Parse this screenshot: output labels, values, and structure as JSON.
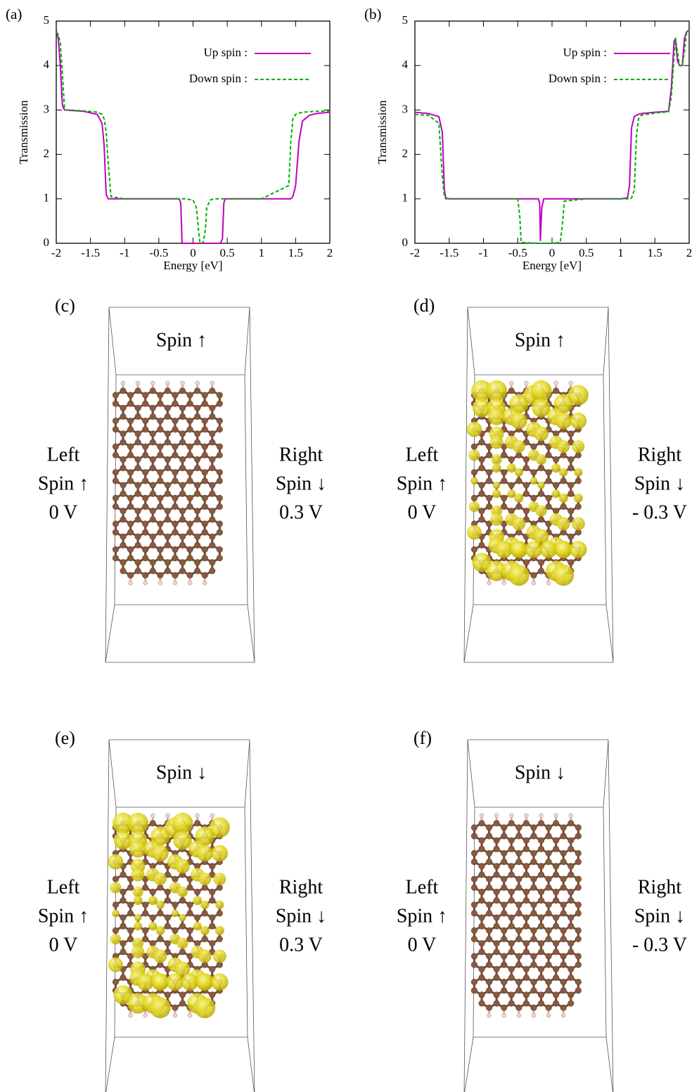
{
  "chart_data": [
    {
      "type": "line",
      "label": "(a)",
      "xlabel": "Energy [eV]",
      "ylabel": "Transmission",
      "xlim": [
        -2,
        2
      ],
      "ylim": [
        0,
        5
      ],
      "xticks": [
        -2,
        -1.5,
        -1,
        -0.5,
        0,
        0.5,
        1,
        1.5,
        2
      ],
      "yticks": [
        0,
        1,
        2,
        3,
        4,
        5
      ],
      "x": [
        -2,
        -1.97,
        -1.94,
        -1.91,
        -1.88,
        -1.85,
        -1.8,
        -1.6,
        -1.4,
        -1.33,
        -1.3,
        -1.27,
        -1.24,
        -1.2,
        -1,
        -0.5,
        -0.2,
        -0.18,
        -0.16,
        -0.1,
        0,
        0.05,
        0.08,
        0.1,
        0.12,
        0.15,
        0.18,
        0.2,
        0.25,
        0.3,
        0.4,
        0.43,
        0.45,
        0.47,
        0.6,
        1,
        1.4,
        1.43,
        1.46,
        1.5,
        1.55,
        1.6,
        1.7,
        1.8,
        2
      ],
      "series": [
        {
          "name": "Up spin :",
          "color": "#c000c0",
          "dashed": false,
          "values": [
            4.8,
            4.6,
            4.0,
            3.1,
            3.0,
            3.0,
            2.99,
            2.97,
            2.9,
            2.7,
            2.2,
            1.1,
            1.0,
            1.0,
            1.0,
            1.0,
            1.0,
            0.9,
            0,
            0,
            0,
            0,
            0,
            0,
            0,
            0,
            0,
            0,
            0,
            0,
            0,
            0.1,
            0.9,
            1.0,
            1.0,
            1.0,
            1.0,
            1.0,
            1.05,
            1.3,
            2.3,
            2.75,
            2.88,
            2.92,
            2.95
          ]
        },
        {
          "name": "Down spin :",
          "color": "#00b000",
          "dashed": true,
          "values": [
            4.75,
            4.7,
            4.5,
            3.8,
            3.05,
            3.0,
            3.0,
            2.98,
            2.95,
            2.9,
            2.8,
            2.5,
            1.8,
            1.05,
            1.0,
            1.0,
            1.0,
            1.0,
            1.0,
            1.0,
            0.97,
            0.8,
            0.3,
            0.02,
            0,
            0.02,
            0.3,
            0.8,
            0.97,
            1.0,
            1.0,
            1.0,
            1.0,
            1.0,
            1.0,
            1.0,
            1.3,
            2.3,
            2.8,
            2.9,
            2.93,
            2.95,
            2.96,
            2.97,
            2.98
          ]
        }
      ]
    },
    {
      "type": "line",
      "label": "(b)",
      "xlabel": "Energy [eV]",
      "ylabel": "Transmission",
      "xlim": [
        -2,
        2
      ],
      "ylim": [
        0,
        5
      ],
      "xticks": [
        -2,
        -1.5,
        -1,
        -0.5,
        0,
        0.5,
        1,
        1.5,
        2
      ],
      "yticks": [
        0,
        1,
        2,
        3,
        4,
        5
      ],
      "x": [
        -2,
        -1.8,
        -1.65,
        -1.6,
        -1.57,
        -1.55,
        -1.5,
        -1,
        -0.5,
        -0.47,
        -0.45,
        -0.2,
        -0.18,
        -0.17,
        -0.15,
        -0.12,
        0,
        0.12,
        0.15,
        0.18,
        0.5,
        1,
        1.1,
        1.13,
        1.16,
        1.2,
        1.23,
        1.26,
        1.3,
        1.5,
        1.7,
        1.74,
        1.78,
        1.8,
        1.83,
        1.86,
        1.9,
        1.93,
        1.96,
        2
      ],
      "series": [
        {
          "name": "Up spin :",
          "color": "#c000c0",
          "dashed": false,
          "values": [
            2.95,
            2.92,
            2.85,
            2.5,
            1.2,
            1.02,
            1.0,
            1.0,
            1.0,
            1.0,
            1.0,
            1.0,
            0.9,
            0.05,
            0.8,
            1.0,
            1.0,
            1.0,
            1.0,
            1.0,
            1.0,
            1.0,
            1.02,
            1.3,
            2.6,
            2.85,
            2.88,
            2.9,
            2.92,
            2.95,
            2.97,
            3.5,
            4.55,
            4.6,
            4.1,
            4.0,
            4.0,
            4.6,
            4.75,
            4.8
          ]
        },
        {
          "name": "Down spin :",
          "color": "#00b000",
          "dashed": true,
          "values": [
            2.9,
            2.88,
            2.7,
            1.5,
            1.05,
            1.0,
            1.0,
            1.0,
            1.0,
            0.6,
            0.02,
            0,
            0,
            0,
            0,
            0,
            0,
            0.02,
            0.4,
            0.95,
            1.0,
            1.0,
            1.0,
            1.0,
            1.02,
            1.2,
            2.4,
            2.8,
            2.88,
            2.93,
            2.96,
            3.3,
            4.2,
            4.62,
            4.3,
            4.0,
            4.0,
            4.3,
            4.72,
            4.78
          ]
        }
      ]
    }
  ],
  "panels": [
    {
      "label": "(c)",
      "top": "Spin ↑",
      "left": [
        "Left",
        "Spin ↑",
        "0 V"
      ],
      "right": [
        "Right",
        "Spin ↓",
        "0.3 V"
      ],
      "isosurface": false
    },
    {
      "label": "(d)",
      "top": "Spin ↑",
      "left": [
        "Left",
        "Spin ↑",
        "0 V"
      ],
      "right": [
        "Right",
        "Spin ↓",
        "- 0.3 V"
      ],
      "isosurface": true
    },
    {
      "label": "(e)",
      "top": "Spin ↓",
      "left": [
        "Left",
        "Spin ↑",
        "0 V"
      ],
      "right": [
        "Right",
        "Spin ↓",
        "0.3 V"
      ],
      "isosurface": true
    },
    {
      "label": "(f)",
      "top": "Spin ↓",
      "left": [
        "Left",
        "Spin ↑",
        "0 V"
      ],
      "right": [
        "Right",
        "Spin ↓",
        "- 0.3 V"
      ],
      "isosurface": false
    }
  ]
}
